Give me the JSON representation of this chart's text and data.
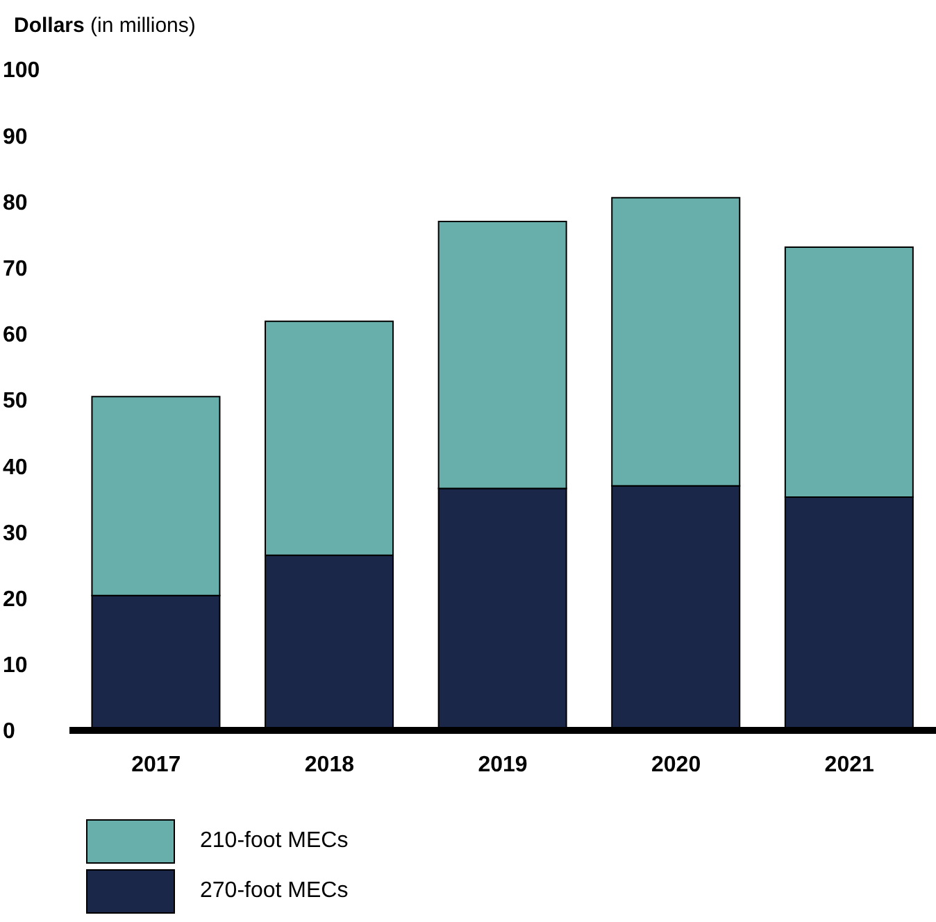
{
  "chart_data": {
    "type": "bar",
    "stacked": true,
    "ylabel": "Dollars (in millions)",
    "categories": [
      "2017",
      "2018",
      "2019",
      "2020",
      "2021"
    ],
    "series": [
      {
        "name": "270-foot MECs",
        "color": "#1b2748",
        "values": [
          20.4,
          26.5,
          36.6,
          37.0,
          35.3
        ]
      },
      {
        "name": "210-foot MECs",
        "color": "#68aeaa",
        "values": [
          30.1,
          35.4,
          40.4,
          43.6,
          37.8
        ]
      }
    ],
    "ylim": [
      0,
      100
    ],
    "yticks": [
      0,
      10,
      20,
      30,
      40,
      50,
      60,
      70,
      80,
      90,
      100
    ],
    "legend": "bottom left"
  }
}
